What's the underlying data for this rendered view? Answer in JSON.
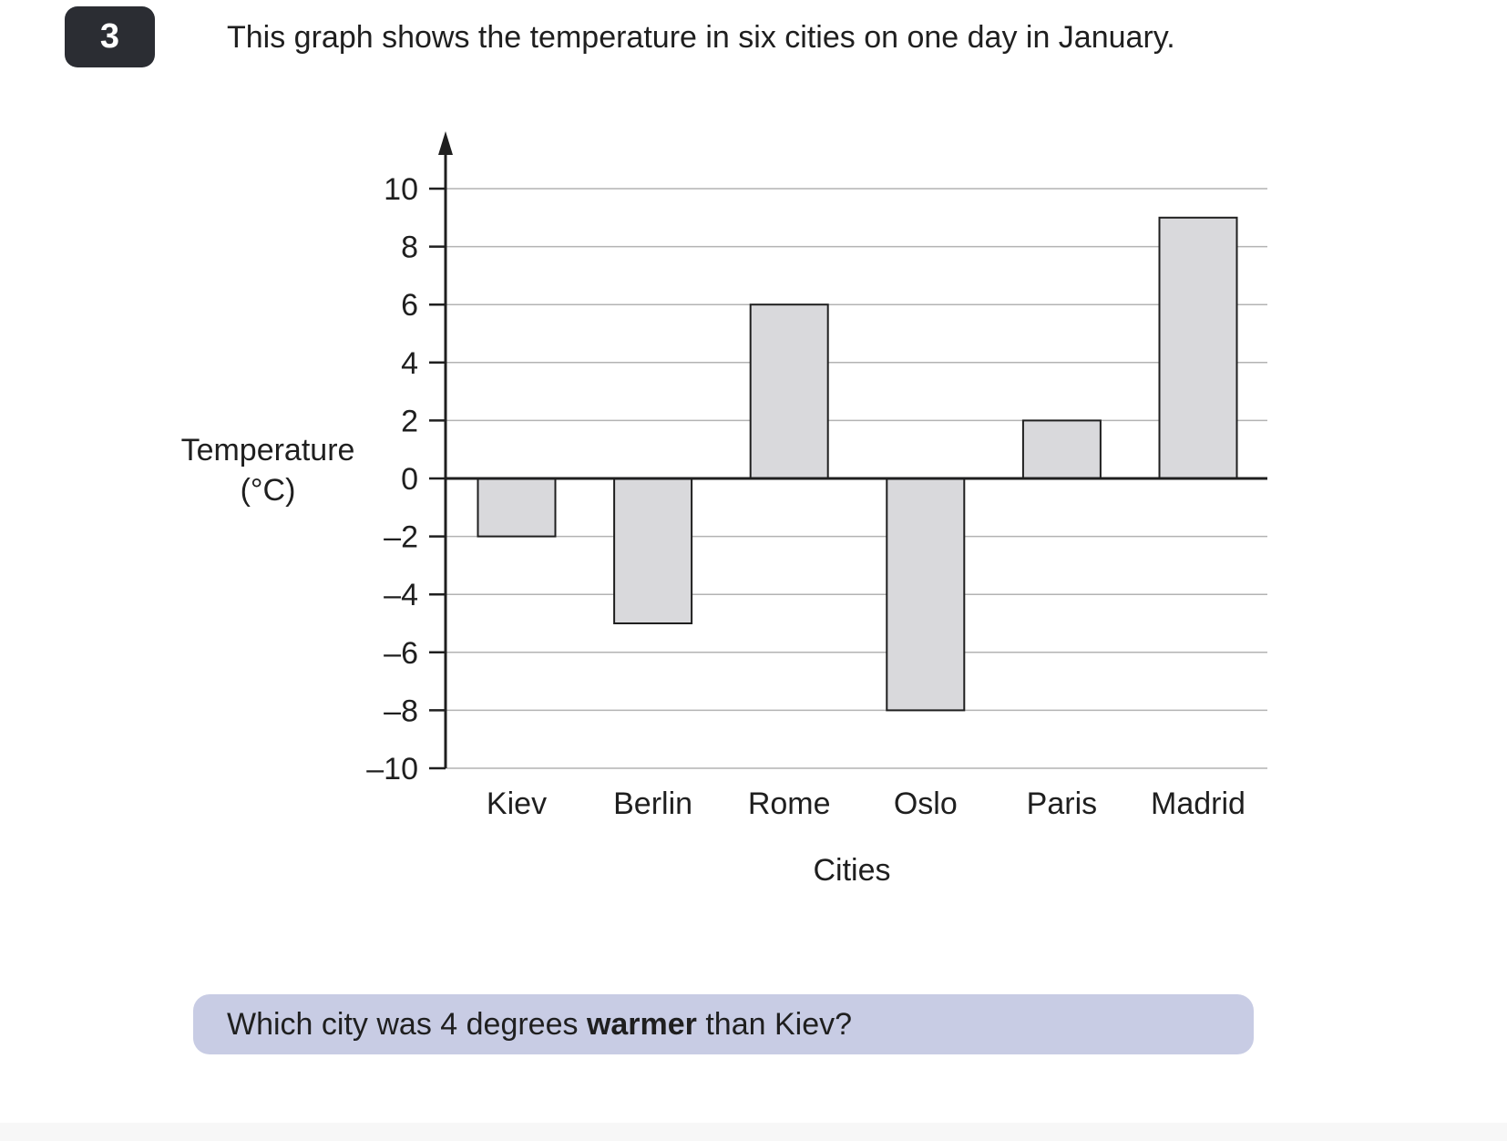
{
  "question": {
    "number": "3",
    "intro": "This graph shows the temperature in six cities on one day in January.",
    "prompt_before": "Which city was 4 degrees ",
    "prompt_bold": "warmer",
    "prompt_after": " than Kiev?"
  },
  "chart_data": {
    "type": "bar",
    "categories": [
      "Kiev",
      "Berlin",
      "Rome",
      "Oslo",
      "Paris",
      "Madrid"
    ],
    "values": [
      -2,
      -5,
      6,
      -8,
      2,
      9
    ],
    "xlabel": "Cities",
    "ylabel_lines": [
      "Temperature",
      "(°C)"
    ],
    "ylim": [
      -10,
      10
    ],
    "yticks": [
      10,
      8,
      6,
      4,
      2,
      0,
      -2,
      -4,
      -6,
      -8,
      -10
    ],
    "ytick_labels": [
      "10",
      "8",
      "6",
      "4",
      "2",
      "0",
      "–2",
      "–4",
      "–6",
      "–8",
      "–10"
    ],
    "grid": true,
    "legend": "none",
    "bar_color": "#d9d9dc",
    "bar_stroke": "#1f1f1f"
  }
}
